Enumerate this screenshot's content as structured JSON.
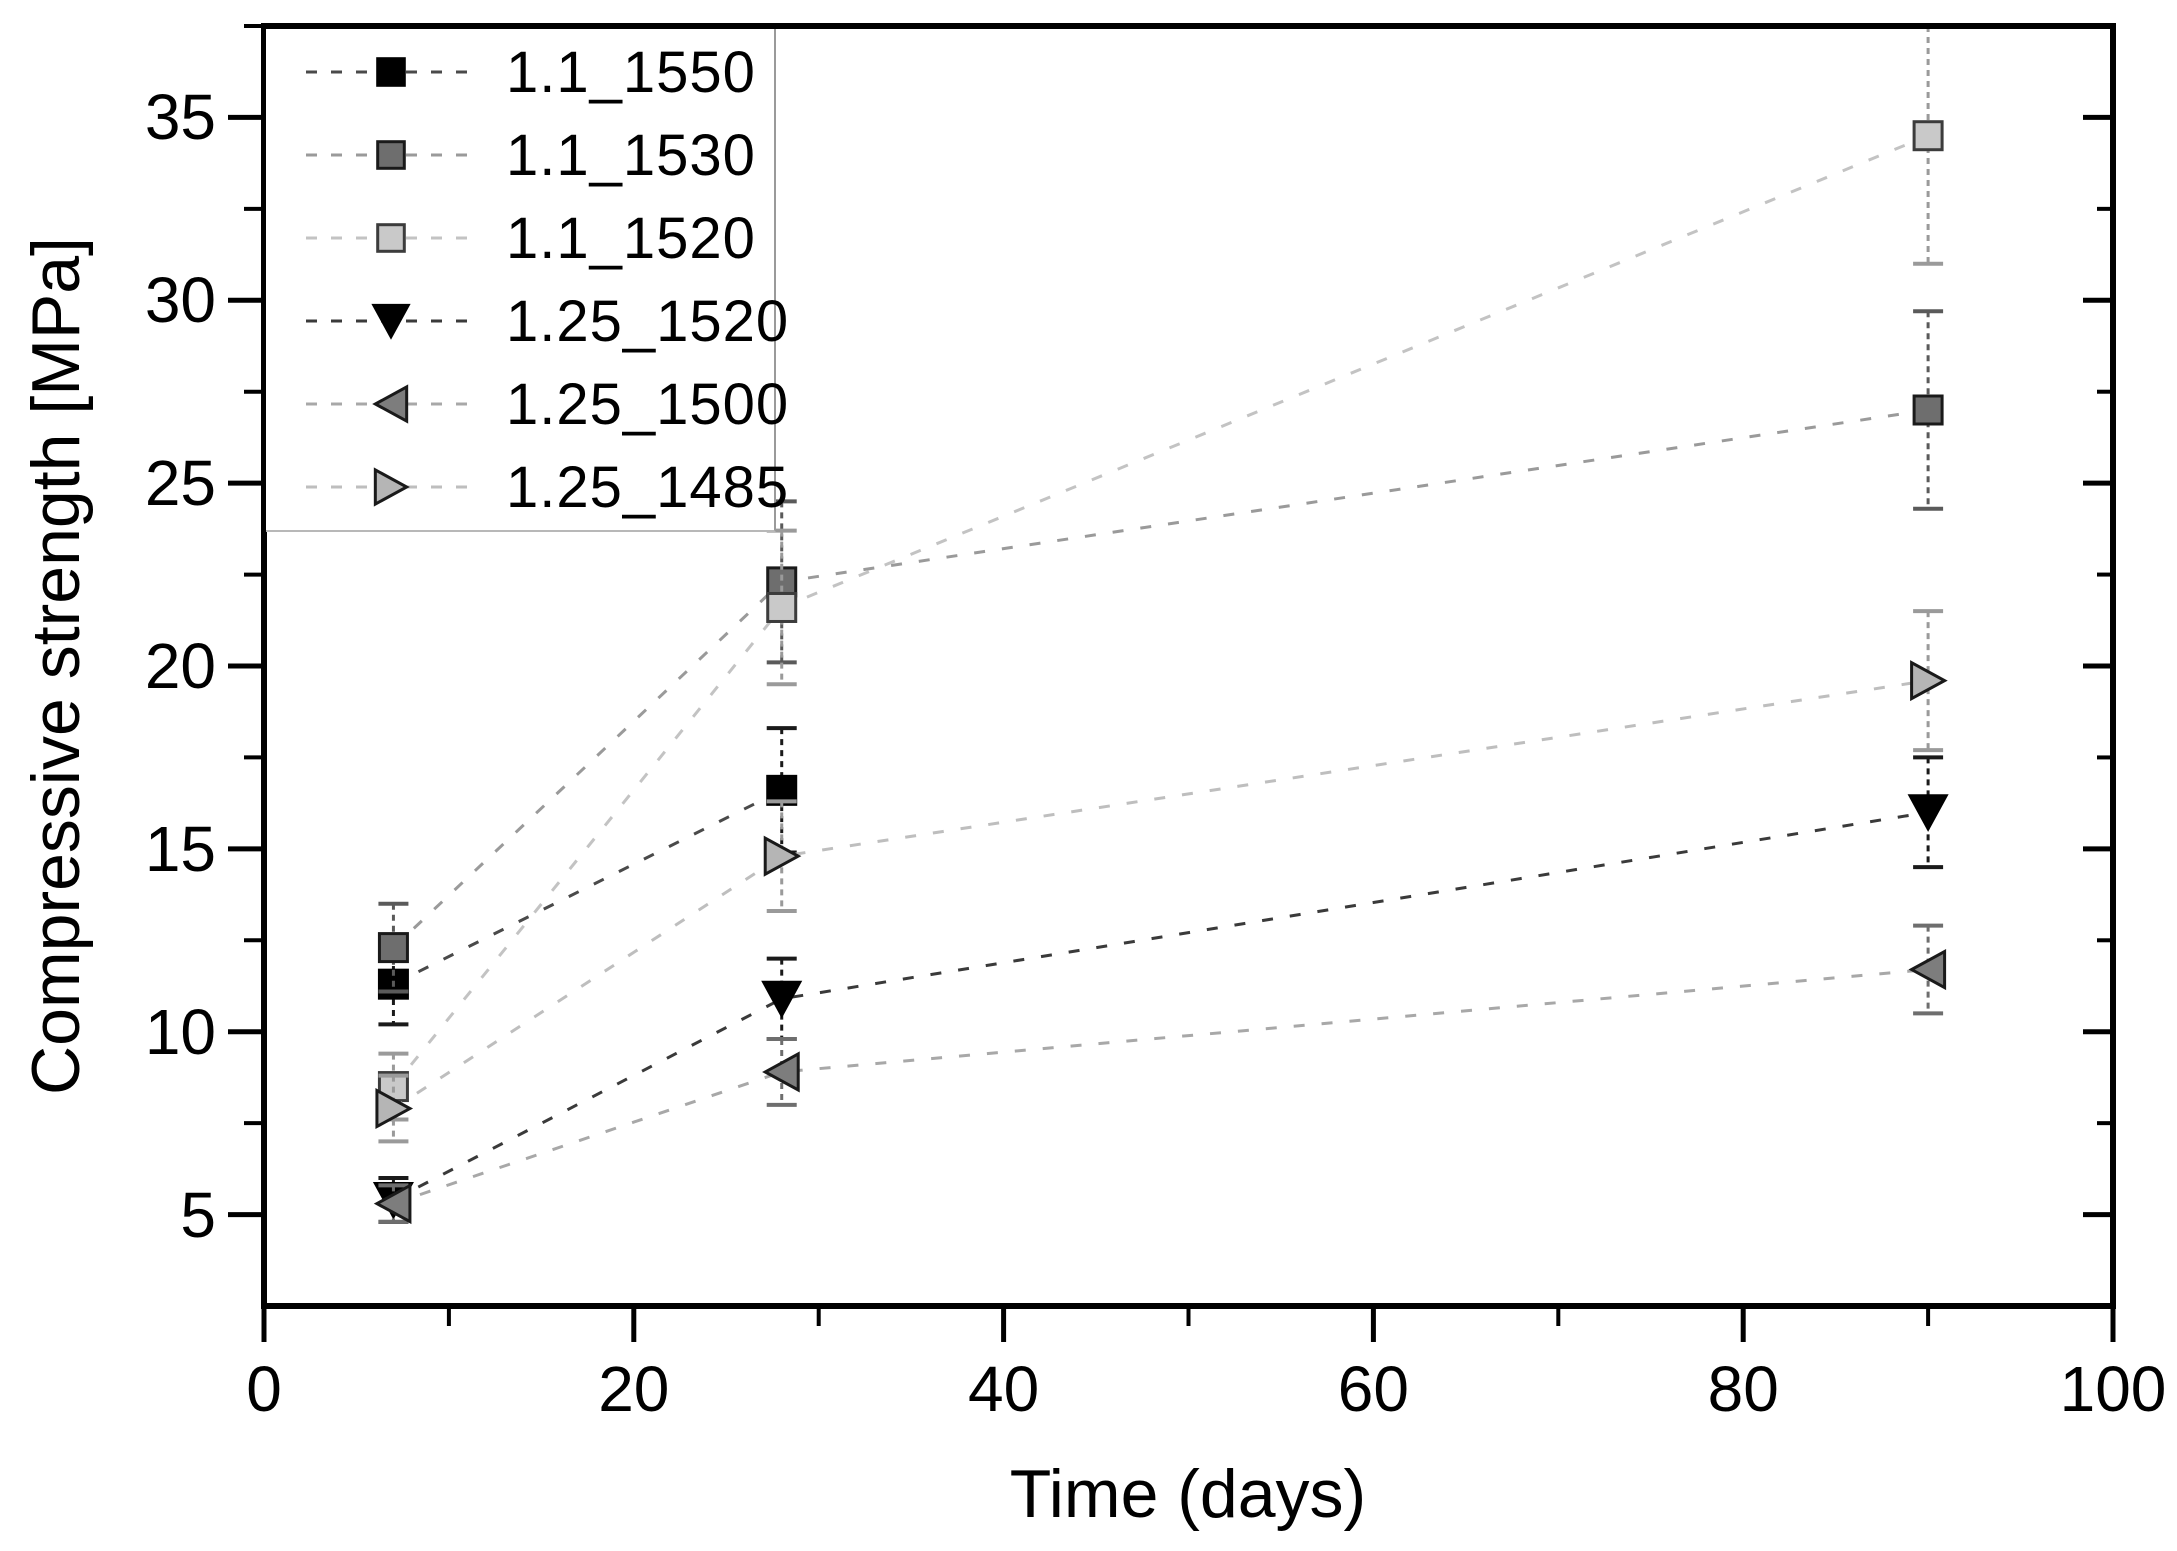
{
  "chart_data": {
    "type": "scatter",
    "title": "",
    "xlabel": "Time (days)",
    "ylabel": "Compressive strength [MPa]",
    "xlim": [
      0,
      100
    ],
    "ylim": [
      2.5,
      37.5
    ],
    "x_major_ticks": [
      0,
      20,
      40,
      60,
      80,
      100
    ],
    "x_minor_ticks": [
      10,
      30,
      50,
      70,
      90
    ],
    "y_major_ticks": [
      35,
      30,
      25,
      20,
      15,
      10,
      5
    ],
    "y_minor_ticks": [
      37.5,
      32.5,
      27.5,
      22.5,
      17.5,
      12.5,
      7.5
    ],
    "grid": false,
    "legend_position": "upper-left",
    "line_style": "dashed",
    "series": [
      {
        "name": "1.1_1550",
        "marker": "square",
        "fill": "#000000",
        "edge": "#000000",
        "line_color": "#4a4a4a",
        "err_color": "#1a1a1a",
        "points": [
          {
            "x": 7,
            "y": 11.3,
            "err": 1.1
          },
          {
            "x": 28,
            "y": 16.6,
            "err": 1.7
          }
        ]
      },
      {
        "name": "1.1_1530",
        "marker": "square",
        "fill": "#6e6e6e",
        "edge": "#1a1a1a",
        "line_color": "#9a9a9a",
        "err_color": "#5a5a5a",
        "points": [
          {
            "x": 7,
            "y": 12.3,
            "err": 1.2
          },
          {
            "x": 28,
            "y": 22.3,
            "err": 2.2
          },
          {
            "x": 90,
            "y": 27.0,
            "err": 2.7
          }
        ]
      },
      {
        "name": "1.1_1520",
        "marker": "square",
        "fill": "#c9c9c9",
        "edge": "#3c3c3c",
        "line_color": "#c3c3c3",
        "err_color": "#9a9a9a",
        "points": [
          {
            "x": 7,
            "y": 8.5,
            "err": 0.9
          },
          {
            "x": 28,
            "y": 21.6,
            "err": 2.1
          },
          {
            "x": 90,
            "y": 34.5,
            "err": 3.5
          }
        ]
      },
      {
        "name": "1.25_1520",
        "marker": "triangle-down",
        "fill": "#000000",
        "edge": "#000000",
        "line_color": "#3a3a3a",
        "err_color": "#1a1a1a",
        "points": [
          {
            "x": 7,
            "y": 5.4,
            "err": 0.6
          },
          {
            "x": 28,
            "y": 10.9,
            "err": 1.1
          },
          {
            "x": 90,
            "y": 16.0,
            "err": 1.5
          }
        ]
      },
      {
        "name": "1.25_1500",
        "marker": "triangle-left",
        "fill": "#7d7d7d",
        "edge": "#1a1a1a",
        "line_color": "#a8a8a8",
        "err_color": "#6e6e6e",
        "points": [
          {
            "x": 7,
            "y": 5.3,
            "err": 0.5
          },
          {
            "x": 28,
            "y": 8.9,
            "err": 0.9
          },
          {
            "x": 90,
            "y": 11.7,
            "err": 1.2
          }
        ]
      },
      {
        "name": "1.25_1485",
        "marker": "triangle-right",
        "fill": "#b5b5b5",
        "edge": "#1a1a1a",
        "line_color": "#bebebe",
        "err_color": "#9a9a9a",
        "points": [
          {
            "x": 7,
            "y": 7.9,
            "err": 0.9
          },
          {
            "x": 28,
            "y": 14.8,
            "err": 1.5
          },
          {
            "x": 90,
            "y": 19.6,
            "err": 1.9
          }
        ]
      }
    ]
  }
}
